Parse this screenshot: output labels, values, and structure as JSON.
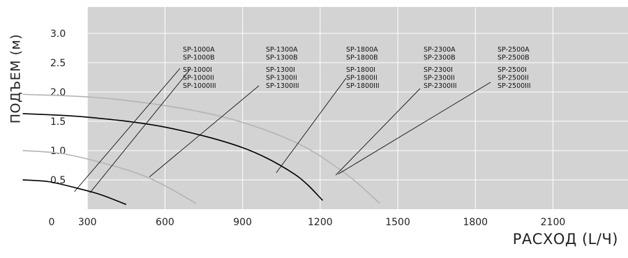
{
  "chart_data": {
    "type": "line",
    "xlabel": "РАСХОД (L/Ч)",
    "ylabel": "ПОДЪЕМ (м)",
    "xlim": [
      0,
      2300
    ],
    "ylim": [
      0,
      3.45
    ],
    "x_ticks": [
      0,
      300,
      600,
      900,
      1200,
      1500,
      1800,
      2100
    ],
    "x_tick_labels": [
      "0",
      "300",
      "600",
      "900",
      "1200",
      "1500",
      "1800",
      "2100"
    ],
    "y_ticks": [
      0.5,
      1.0,
      1.5,
      2.0,
      2.5,
      3.0
    ],
    "y_tick_labels": [
      "0.5",
      "1.0",
      "1.5",
      "2.0",
      "2.5",
      "3.0"
    ],
    "grid": true,
    "series": [
      {
        "name": "SP-1000",
        "color": "#000000",
        "points": [
          [
            50,
            0.5
          ],
          [
            150,
            0.47
          ],
          [
            250,
            0.37
          ],
          [
            350,
            0.25
          ],
          [
            450,
            0.08
          ]
        ]
      },
      {
        "name": "SP-1300",
        "color": "#b3b3b3",
        "points": [
          [
            50,
            1.0
          ],
          [
            200,
            0.95
          ],
          [
            350,
            0.8
          ],
          [
            500,
            0.6
          ],
          [
            600,
            0.4
          ],
          [
            720,
            0.1
          ]
        ]
      },
      {
        "name": "SP-1800",
        "color": "#000000",
        "points": [
          [
            50,
            1.63
          ],
          [
            300,
            1.57
          ],
          [
            600,
            1.4
          ],
          [
            900,
            1.05
          ],
          [
            1100,
            0.6
          ],
          [
            1210,
            0.15
          ]
        ]
      },
      {
        "name": "SP-2300",
        "color": "#b3b3b3",
        "points": [
          [
            50,
            1.96
          ],
          [
            400,
            1.88
          ],
          [
            800,
            1.6
          ],
          [
            1100,
            1.15
          ],
          [
            1300,
            0.6
          ],
          [
            1430,
            0.1
          ]
        ]
      }
    ],
    "annotations": [
      {
        "lines": [
          "SP-1000A",
          "SP-1000B",
          "",
          "SP-1000I",
          "SP-1000II",
          "SP-1000III"
        ]
      },
      {
        "lines": [
          "SP-1300A",
          "SP-1300B",
          "",
          "SP-1300I",
          "SP-1300II",
          "SP-1300III"
        ]
      },
      {
        "lines": [
          "SP-1800A",
          "SP-1800B",
          "",
          "SP-1800I",
          "SP-1800II",
          "SP-1800III"
        ]
      },
      {
        "lines": [
          "SP-2300A",
          "SP-2300B",
          "",
          "SP-2300I",
          "SP-2300II",
          "SP-2300III"
        ]
      },
      {
        "lines": [
          "SP-2500A",
          "SP-2500B",
          "",
          "SP-2500I",
          "SP-2500II",
          "SP-2500III"
        ]
      }
    ],
    "leaders": [
      {
        "label": 0,
        "to": [
          250,
          0.3
        ]
      },
      {
        "label": 0,
        "to": [
          310,
          0.28
        ]
      },
      {
        "label": 1,
        "to": [
          540,
          0.55
        ]
      },
      {
        "label": 2,
        "to": [
          1030,
          0.62
        ]
      },
      {
        "label": 3,
        "to": [
          1260,
          0.58
        ]
      }
    ]
  }
}
